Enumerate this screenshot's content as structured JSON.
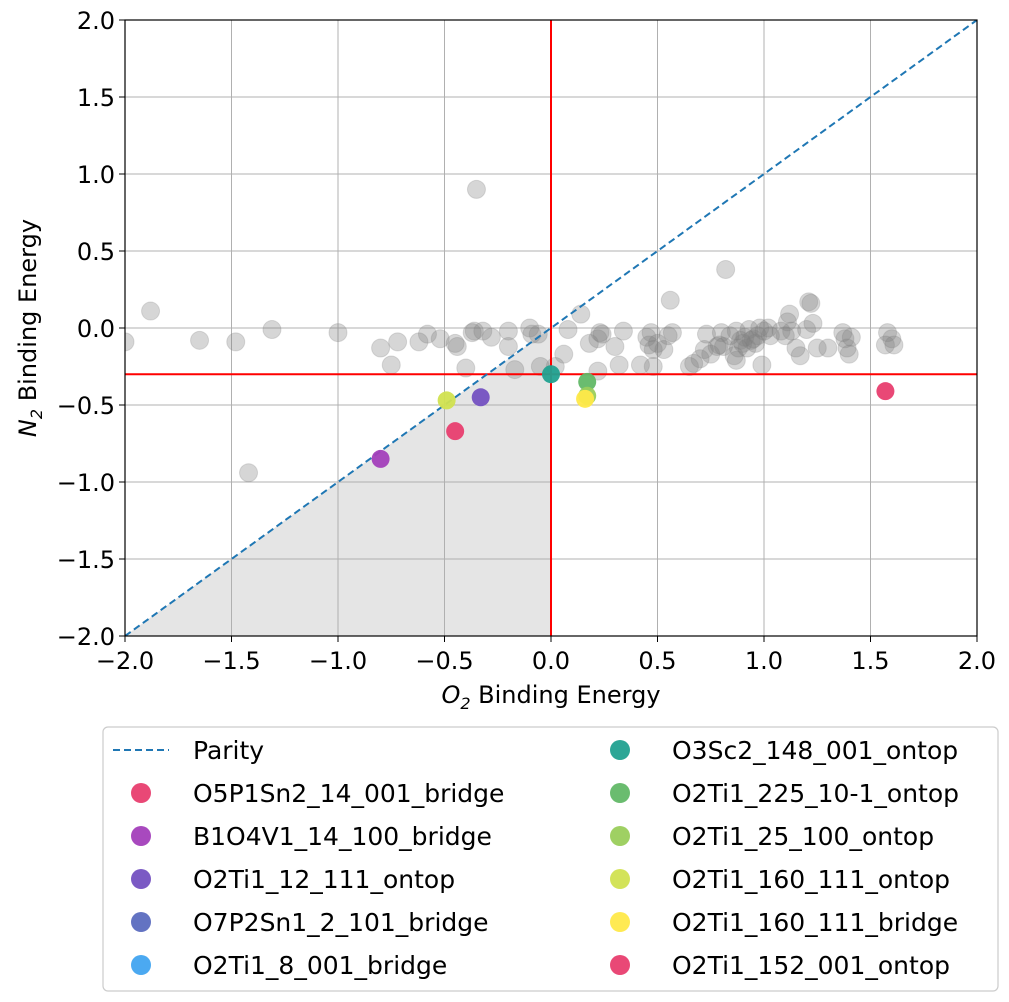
{
  "chart_data": {
    "type": "scatter",
    "title": "",
    "xlabel_main": "O",
    "xlabel_sub": "2",
    "xlabel_rest": " Binding Energy",
    "ylabel_main": "N",
    "ylabel_sub": "2",
    "ylabel_rest": " Binding Energy",
    "xlim": [
      -2.0,
      2.0
    ],
    "ylim": [
      -2.0,
      2.0
    ],
    "xticks": [
      -2.0,
      -1.5,
      -1.0,
      -0.5,
      0.0,
      0.5,
      1.0,
      1.5,
      2.0
    ],
    "yticks": [
      -2.0,
      -1.5,
      -1.0,
      -0.5,
      0.0,
      0.5,
      1.0,
      1.5,
      2.0
    ],
    "xtick_labels": [
      "−2.0",
      "−1.5",
      "−1.0",
      "−0.5",
      "0.0",
      "0.5",
      "1.0",
      "1.5",
      "2.0"
    ],
    "ytick_labels": [
      "−2.0",
      "−1.5",
      "−1.0",
      "−0.5",
      "0.0",
      "0.5",
      "1.0",
      "1.5",
      "2.0"
    ],
    "grid": true,
    "reference_lines": {
      "vertical_x": 0.0,
      "horizontal_y": -0.3,
      "color": "#ff0000"
    },
    "shaded_region": {
      "description": "below parity, x < 0",
      "color": "#e5e5e5"
    },
    "parity": {
      "name": "Parity",
      "color": "#1f77b4",
      "style": "dashed"
    },
    "background_points": {
      "color": "#808080",
      "points": [
        [
          -2.0,
          -0.09
        ],
        [
          -1.88,
          0.11
        ],
        [
          -1.65,
          -0.08
        ],
        [
          -1.48,
          -0.09
        ],
        [
          -1.42,
          -0.94
        ],
        [
          -1.31,
          -0.01
        ],
        [
          -1.0,
          -0.03
        ],
        [
          -0.8,
          -0.13
        ],
        [
          -0.75,
          -0.24
        ],
        [
          -0.72,
          -0.09
        ],
        [
          -0.62,
          -0.09
        ],
        [
          -0.58,
          -0.04
        ],
        [
          -0.52,
          -0.07
        ],
        [
          -0.45,
          -0.1
        ],
        [
          -0.44,
          -0.12
        ],
        [
          -0.4,
          -0.26
        ],
        [
          -0.37,
          -0.03
        ],
        [
          -0.36,
          -0.02
        ],
        [
          -0.35,
          0.9
        ],
        [
          -0.32,
          -0.02
        ],
        [
          -0.28,
          -0.06
        ],
        [
          -0.2,
          -0.12
        ],
        [
          -0.2,
          -0.02
        ],
        [
          -0.17,
          -0.27
        ],
        [
          -0.1,
          0.0
        ],
        [
          -0.09,
          -0.04
        ],
        [
          -0.06,
          -0.04
        ],
        [
          -0.05,
          -0.25
        ],
        [
          0.02,
          -0.25
        ],
        [
          0.06,
          -0.17
        ],
        [
          0.08,
          -0.01
        ],
        [
          0.14,
          0.09
        ],
        [
          0.18,
          -0.1
        ],
        [
          0.22,
          -0.07
        ],
        [
          0.23,
          -0.03
        ],
        [
          0.24,
          -0.04
        ],
        [
          0.22,
          -0.28
        ],
        [
          0.3,
          -0.12
        ],
        [
          0.32,
          -0.24
        ],
        [
          0.34,
          -0.02
        ],
        [
          0.42,
          -0.24
        ],
        [
          0.45,
          -0.06
        ],
        [
          0.46,
          -0.11
        ],
        [
          0.47,
          -0.03
        ],
        [
          0.48,
          -0.14
        ],
        [
          0.48,
          -0.25
        ],
        [
          0.5,
          -0.1
        ],
        [
          0.53,
          -0.14
        ],
        [
          0.55,
          -0.05
        ],
        [
          0.56,
          0.18
        ],
        [
          0.57,
          -0.03
        ],
        [
          0.65,
          -0.25
        ],
        [
          0.67,
          -0.23
        ],
        [
          0.7,
          -0.2
        ],
        [
          0.72,
          -0.14
        ],
        [
          0.73,
          -0.04
        ],
        [
          0.75,
          -0.17
        ],
        [
          0.78,
          -0.12
        ],
        [
          0.79,
          -0.11
        ],
        [
          0.8,
          -0.03
        ],
        [
          0.81,
          -0.12
        ],
        [
          0.82,
          0.38
        ],
        [
          0.84,
          -0.05
        ],
        [
          0.86,
          -0.18
        ],
        [
          0.87,
          -0.02
        ],
        [
          0.87,
          -0.21
        ],
        [
          0.88,
          -0.13
        ],
        [
          0.89,
          -0.08
        ],
        [
          0.9,
          -0.1
        ],
        [
          0.91,
          -0.06
        ],
        [
          0.92,
          -0.13
        ],
        [
          0.93,
          -0.01
        ],
        [
          0.94,
          -0.08
        ],
        [
          0.95,
          -0.07
        ],
        [
          0.96,
          -0.1
        ],
        [
          0.97,
          -0.05
        ],
        [
          0.98,
          0.0
        ],
        [
          0.99,
          -0.24
        ],
        [
          1.0,
          -0.02
        ],
        [
          1.02,
          0.0
        ],
        [
          1.03,
          -0.05
        ],
        [
          1.08,
          -0.02
        ],
        [
          1.1,
          -0.05
        ],
        [
          1.11,
          0.04
        ],
        [
          1.12,
          0.09
        ],
        [
          1.13,
          -0.02
        ],
        [
          1.15,
          -0.13
        ],
        [
          1.17,
          -0.18
        ],
        [
          1.2,
          -0.01
        ],
        [
          1.21,
          0.17
        ],
        [
          1.22,
          0.16
        ],
        [
          1.23,
          0.03
        ],
        [
          1.25,
          -0.13
        ],
        [
          1.3,
          -0.13
        ],
        [
          1.37,
          -0.03
        ],
        [
          1.38,
          -0.07
        ],
        [
          1.39,
          -0.13
        ],
        [
          1.4,
          -0.17
        ],
        [
          1.41,
          -0.06
        ],
        [
          1.57,
          -0.11
        ],
        [
          1.58,
          -0.03
        ],
        [
          1.6,
          -0.07
        ],
        [
          1.61,
          -0.11
        ]
      ]
    },
    "series": [
      {
        "name": "O5P1Sn2_14_001_bridge",
        "color": "#e83e6f",
        "x": 1.57,
        "y": -0.41
      },
      {
        "name": "B1O4V1_14_100_bridge",
        "color": "#a33fba",
        "x": -0.8,
        "y": -0.85
      },
      {
        "name": "O2Ti1_12_111_ontop",
        "color": "#7451c1",
        "x": -0.33,
        "y": -0.45
      },
      {
        "name": "O7P2Sn1_2_101_bridge",
        "color": "#5b6bbf",
        "x": null,
        "y": null
      },
      {
        "name": "O2Ti1_8_001_bridge",
        "color": "#41a4f0",
        "x": null,
        "y": null
      },
      {
        "name": "O3Sc2_148_001_ontop",
        "color": "#21a190",
        "x": 0.0,
        "y": -0.3
      },
      {
        "name": "O2Ti1_225_10-1_ontop",
        "color": "#62b867",
        "x": 0.17,
        "y": -0.35
      },
      {
        "name": "O2Ti1_25_100_ontop",
        "color": "#9acd5b",
        "x": 0.17,
        "y": -0.44
      },
      {
        "name": "O2Ti1_160_111_ontop",
        "color": "#d1e150",
        "x": -0.49,
        "y": -0.47
      },
      {
        "name": "O2Ti1_160_111_bridge",
        "color": "#ffe949",
        "x": 0.16,
        "y": -0.46
      },
      {
        "name": "O2Ti1_152_001_ontop",
        "color": "#e83e6f",
        "x": -0.45,
        "y": -0.67
      }
    ]
  }
}
